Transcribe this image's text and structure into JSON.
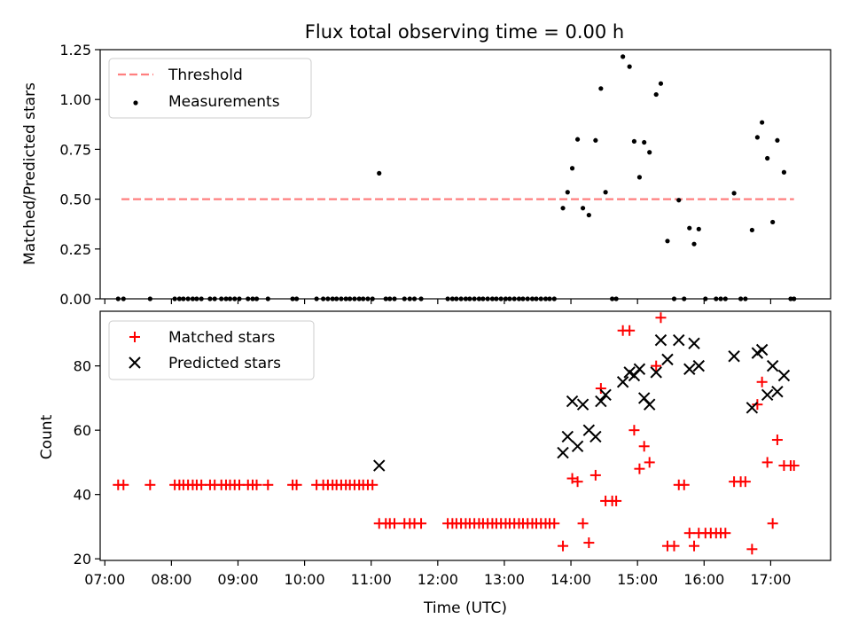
{
  "figure_title": "Flux total observing time = 0.00 h",
  "chart_data": [
    {
      "type": "scatter",
      "panel": "top",
      "title": "Flux total observing time = 0.00 h",
      "xlabel": "",
      "ylabel": "Matched/Predicted stars",
      "xlim": [
        6.93,
        17.9
      ],
      "ylim": [
        0,
        1.25
      ],
      "yticks": [
        0.0,
        0.25,
        0.5,
        0.75,
        1.0,
        1.25
      ],
      "ytick_labels": [
        "0.00",
        "0.25",
        "0.50",
        "0.75",
        "1.00",
        "1.25"
      ],
      "grid": false,
      "legend": "top-left",
      "threshold": {
        "name": "Threshold",
        "value": 0.5,
        "x_range": [
          7.25,
          17.35
        ],
        "color": "#ff7f7f"
      },
      "series": [
        {
          "name": "Measurements",
          "marker": "dot",
          "color": "#000000",
          "points": [
            [
              7.2,
              0
            ],
            [
              7.28,
              0
            ],
            [
              7.68,
              0
            ],
            [
              8.05,
              0
            ],
            [
              8.12,
              0
            ],
            [
              8.18,
              0
            ],
            [
              8.25,
              0
            ],
            [
              8.32,
              0
            ],
            [
              8.38,
              0
            ],
            [
              8.45,
              0
            ],
            [
              8.58,
              0
            ],
            [
              8.65,
              0
            ],
            [
              8.75,
              0
            ],
            [
              8.82,
              0
            ],
            [
              8.88,
              0
            ],
            [
              8.95,
              0
            ],
            [
              9.02,
              0
            ],
            [
              9.15,
              0
            ],
            [
              9.22,
              0
            ],
            [
              9.28,
              0
            ],
            [
              9.45,
              0
            ],
            [
              9.82,
              0
            ],
            [
              9.88,
              0
            ],
            [
              10.18,
              0
            ],
            [
              10.28,
              0
            ],
            [
              10.35,
              0
            ],
            [
              10.42,
              0
            ],
            [
              10.48,
              0
            ],
            [
              10.55,
              0
            ],
            [
              10.62,
              0
            ],
            [
              10.68,
              0
            ],
            [
              10.75,
              0
            ],
            [
              10.82,
              0
            ],
            [
              10.88,
              0
            ],
            [
              10.95,
              0
            ],
            [
              11.02,
              0
            ],
            [
              11.12,
              0.63
            ],
            [
              11.22,
              0
            ],
            [
              11.28,
              0
            ],
            [
              11.35,
              0
            ],
            [
              11.5,
              0
            ],
            [
              11.58,
              0
            ],
            [
              11.65,
              0
            ],
            [
              11.75,
              0
            ],
            [
              12.15,
              0
            ],
            [
              12.22,
              0
            ],
            [
              12.28,
              0
            ],
            [
              12.35,
              0
            ],
            [
              12.42,
              0
            ],
            [
              12.48,
              0
            ],
            [
              12.55,
              0
            ],
            [
              12.62,
              0
            ],
            [
              12.68,
              0
            ],
            [
              12.75,
              0
            ],
            [
              12.82,
              0
            ],
            [
              12.88,
              0
            ],
            [
              12.95,
              0
            ],
            [
              13.02,
              0
            ],
            [
              13.08,
              0
            ],
            [
              13.15,
              0
            ],
            [
              13.22,
              0
            ],
            [
              13.28,
              0
            ],
            [
              13.35,
              0
            ],
            [
              13.42,
              0
            ],
            [
              13.48,
              0
            ],
            [
              13.55,
              0
            ],
            [
              13.62,
              0
            ],
            [
              13.68,
              0
            ],
            [
              13.75,
              0
            ],
            [
              13.88,
              0.455
            ],
            [
              13.95,
              0.535
            ],
            [
              14.02,
              0.655
            ],
            [
              14.1,
              0.8
            ],
            [
              14.18,
              0.455
            ],
            [
              14.27,
              0.42
            ],
            [
              14.37,
              0.795
            ],
            [
              14.45,
              1.055
            ],
            [
              14.52,
              0.535
            ],
            [
              14.62,
              0
            ],
            [
              14.68,
              0
            ],
            [
              14.78,
              1.215
            ],
            [
              14.88,
              1.165
            ],
            [
              14.95,
              0.79
            ],
            [
              15.03,
              0.61
            ],
            [
              15.1,
              0.785
            ],
            [
              15.18,
              0.735
            ],
            [
              15.28,
              1.025
            ],
            [
              15.35,
              1.08
            ],
            [
              15.45,
              0.29
            ],
            [
              15.55,
              0
            ],
            [
              15.62,
              0.495
            ],
            [
              15.7,
              0
            ],
            [
              15.78,
              0.355
            ],
            [
              15.85,
              0.275
            ],
            [
              15.92,
              0.35
            ],
            [
              16.02,
              0
            ],
            [
              16.18,
              0
            ],
            [
              16.25,
              0
            ],
            [
              16.32,
              0
            ],
            [
              16.45,
              0.53
            ],
            [
              16.55,
              0
            ],
            [
              16.62,
              0
            ],
            [
              16.72,
              0.345
            ],
            [
              16.8,
              0.81
            ],
            [
              16.87,
              0.885
            ],
            [
              16.95,
              0.705
            ],
            [
              17.03,
              0.385
            ],
            [
              17.1,
              0.795
            ],
            [
              17.2,
              0.635
            ],
            [
              17.3,
              0
            ],
            [
              17.35,
              0
            ]
          ]
        }
      ]
    },
    {
      "type": "scatter",
      "panel": "bottom",
      "title": "",
      "xlabel": "Time (UTC)",
      "ylabel": "Count",
      "xlim": [
        6.93,
        17.9
      ],
      "ylim": [
        19.5,
        97
      ],
      "yticks": [
        20,
        40,
        60,
        80
      ],
      "ytick_labels": [
        "20",
        "40",
        "60",
        "80"
      ],
      "xticks": [
        7,
        8,
        9,
        10,
        11,
        12,
        13,
        14,
        15,
        16,
        17
      ],
      "xtick_labels": [
        "07:00",
        "08:00",
        "09:00",
        "10:00",
        "11:00",
        "12:00",
        "13:00",
        "14:00",
        "15:00",
        "16:00",
        "17:00"
      ],
      "grid": false,
      "legend": "top-left",
      "series": [
        {
          "name": "Matched stars",
          "marker": "plus",
          "color": "#ff0000",
          "points": [
            [
              7.2,
              43
            ],
            [
              7.28,
              43
            ],
            [
              7.68,
              43
            ],
            [
              8.05,
              43
            ],
            [
              8.12,
              43
            ],
            [
              8.18,
              43
            ],
            [
              8.25,
              43
            ],
            [
              8.32,
              43
            ],
            [
              8.38,
              43
            ],
            [
              8.45,
              43
            ],
            [
              8.58,
              43
            ],
            [
              8.65,
              43
            ],
            [
              8.75,
              43
            ],
            [
              8.82,
              43
            ],
            [
              8.88,
              43
            ],
            [
              8.95,
              43
            ],
            [
              9.02,
              43
            ],
            [
              9.15,
              43
            ],
            [
              9.22,
              43
            ],
            [
              9.28,
              43
            ],
            [
              9.45,
              43
            ],
            [
              9.82,
              43
            ],
            [
              9.88,
              43
            ],
            [
              10.18,
              43
            ],
            [
              10.28,
              43
            ],
            [
              10.35,
              43
            ],
            [
              10.42,
              43
            ],
            [
              10.48,
              43
            ],
            [
              10.55,
              43
            ],
            [
              10.62,
              43
            ],
            [
              10.68,
              43
            ],
            [
              10.75,
              43
            ],
            [
              10.82,
              43
            ],
            [
              10.88,
              43
            ],
            [
              10.95,
              43
            ],
            [
              11.02,
              43
            ],
            [
              11.12,
              31
            ],
            [
              11.22,
              31
            ],
            [
              11.28,
              31
            ],
            [
              11.35,
              31
            ],
            [
              11.5,
              31
            ],
            [
              11.58,
              31
            ],
            [
              11.65,
              31
            ],
            [
              11.75,
              31
            ],
            [
              12.15,
              31
            ],
            [
              12.22,
              31
            ],
            [
              12.28,
              31
            ],
            [
              12.35,
              31
            ],
            [
              12.42,
              31
            ],
            [
              12.48,
              31
            ],
            [
              12.55,
              31
            ],
            [
              12.62,
              31
            ],
            [
              12.68,
              31
            ],
            [
              12.75,
              31
            ],
            [
              12.82,
              31
            ],
            [
              12.88,
              31
            ],
            [
              12.95,
              31
            ],
            [
              13.02,
              31
            ],
            [
              13.08,
              31
            ],
            [
              13.15,
              31
            ],
            [
              13.22,
              31
            ],
            [
              13.28,
              31
            ],
            [
              13.35,
              31
            ],
            [
              13.42,
              31
            ],
            [
              13.48,
              31
            ],
            [
              13.55,
              31
            ],
            [
              13.62,
              31
            ],
            [
              13.68,
              31
            ],
            [
              13.75,
              31
            ],
            [
              13.88,
              24
            ],
            [
              14.02,
              45
            ],
            [
              14.1,
              44
            ],
            [
              14.18,
              31
            ],
            [
              14.27,
              25
            ],
            [
              14.37,
              46
            ],
            [
              14.45,
              73
            ],
            [
              14.52,
              38
            ],
            [
              14.62,
              38
            ],
            [
              14.68,
              38
            ],
            [
              14.78,
              91
            ],
            [
              14.88,
              91
            ],
            [
              14.95,
              60
            ],
            [
              15.03,
              48
            ],
            [
              15.1,
              55
            ],
            [
              15.18,
              50
            ],
            [
              15.28,
              80
            ],
            [
              15.35,
              95
            ],
            [
              15.45,
              24
            ],
            [
              15.55,
              24
            ],
            [
              15.62,
              43
            ],
            [
              15.7,
              43
            ],
            [
              15.78,
              28
            ],
            [
              15.85,
              24
            ],
            [
              15.92,
              28
            ],
            [
              16.02,
              28
            ],
            [
              16.1,
              28
            ],
            [
              16.18,
              28
            ],
            [
              16.25,
              28
            ],
            [
              16.32,
              28
            ],
            [
              16.45,
              44
            ],
            [
              16.55,
              44
            ],
            [
              16.62,
              44
            ],
            [
              16.72,
              23
            ],
            [
              16.8,
              68
            ],
            [
              16.87,
              75
            ],
            [
              16.95,
              50
            ],
            [
              17.03,
              31
            ],
            [
              17.1,
              57
            ],
            [
              17.2,
              49
            ],
            [
              17.3,
              49
            ],
            [
              17.35,
              49
            ]
          ]
        },
        {
          "name": "Predicted stars",
          "marker": "x",
          "color": "#000000",
          "points": [
            [
              11.12,
              49
            ],
            [
              13.88,
              53
            ],
            [
              13.95,
              58
            ],
            [
              14.02,
              69
            ],
            [
              14.1,
              55
            ],
            [
              14.18,
              68
            ],
            [
              14.27,
              60
            ],
            [
              14.37,
              58
            ],
            [
              14.45,
              69
            ],
            [
              14.52,
              71
            ],
            [
              14.78,
              75
            ],
            [
              14.88,
              78
            ],
            [
              14.95,
              77
            ],
            [
              15.03,
              79
            ],
            [
              15.1,
              70
            ],
            [
              15.18,
              68
            ],
            [
              15.28,
              78
            ],
            [
              15.35,
              88
            ],
            [
              15.45,
              82
            ],
            [
              15.62,
              88
            ],
            [
              15.78,
              79
            ],
            [
              15.85,
              87
            ],
            [
              15.92,
              80
            ],
            [
              16.45,
              83
            ],
            [
              16.72,
              67
            ],
            [
              16.8,
              84
            ],
            [
              16.87,
              85
            ],
            [
              16.95,
              71
            ],
            [
              17.03,
              80
            ],
            [
              17.1,
              72
            ],
            [
              17.2,
              77
            ]
          ]
        }
      ]
    }
  ]
}
